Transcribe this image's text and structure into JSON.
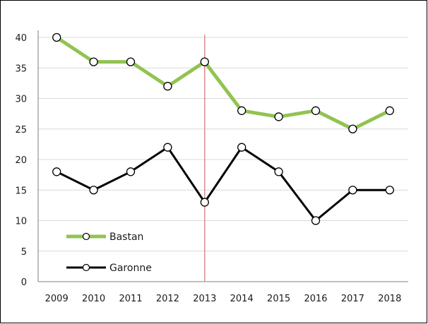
{
  "chart_data": {
    "type": "line",
    "categories": [
      "2009",
      "2010",
      "2011",
      "2012",
      "2013",
      "2014",
      "2015",
      "2016",
      "2017",
      "2018"
    ],
    "ylim": [
      0,
      40
    ],
    "yticks": [
      0,
      5,
      10,
      15,
      20,
      25,
      30,
      35,
      40
    ],
    "grid": true,
    "legend_position": "bottom-left",
    "vertical_marker": "2013",
    "series": [
      {
        "name": "Bastan",
        "values": [
          40,
          36,
          36,
          32,
          36,
          28,
          27,
          28,
          25,
          28
        ],
        "color": "#92c352"
      },
      {
        "name": "Garonne",
        "values": [
          18,
          15,
          18,
          22,
          13,
          22,
          18,
          10,
          15,
          15
        ],
        "color": "#000000"
      }
    ],
    "marker_line_color": "#d98c8c"
  }
}
